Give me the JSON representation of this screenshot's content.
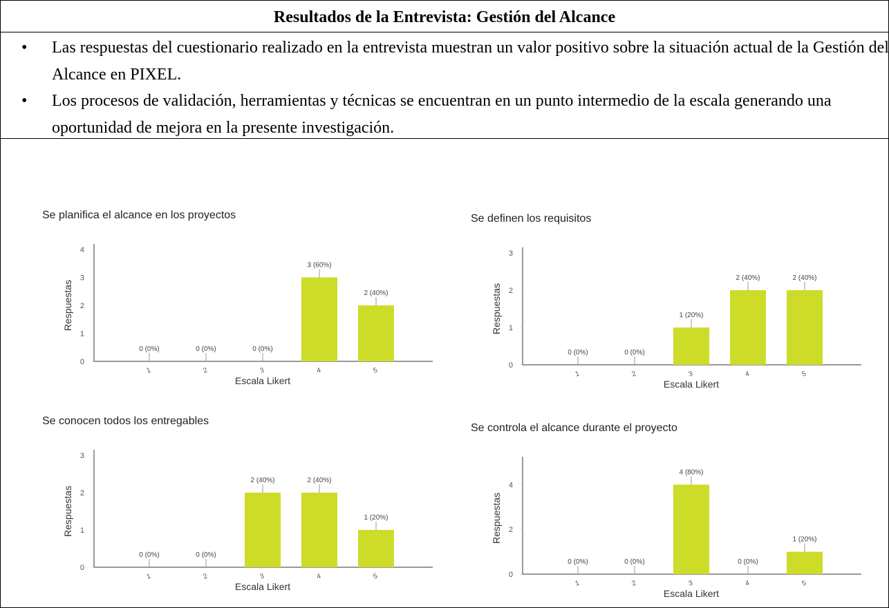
{
  "header": {
    "title": "Resultados de la Entrevista: Gestión del Alcance"
  },
  "bullets": [
    "Las respuestas del cuestionario realizado en la entrevista muestran un valor positivo sobre la situación actual de la Gestión del Alcance en PIXEL.",
    "Los procesos de validación, herramientas y técnicas se encuentran en un punto intermedio de la escala generando una oportunidad de mejora en la presente investigación."
  ],
  "chart_data": [
    {
      "type": "bar",
      "title": "Se planifica el alcance en los proyectos",
      "xlabel": "Escala Likert",
      "ylabel": "Respuestas",
      "categories": [
        "1",
        "2",
        "3",
        "4",
        "5"
      ],
      "values": [
        0,
        0,
        0,
        3,
        2
      ],
      "value_labels": [
        "0 (0%)",
        "0 (0%)",
        "0 (0%)",
        "3 (60%)",
        "2 (40%)"
      ],
      "color": "#cddc29",
      "ylim": [
        0,
        4
      ],
      "yticks": [
        0,
        1,
        2,
        3,
        4
      ]
    },
    {
      "type": "bar",
      "title": "Se definen los requisitos",
      "xlabel": "Escala Likert",
      "ylabel": "Respuestas",
      "categories": [
        "1",
        "2",
        "3",
        "4",
        "5"
      ],
      "values": [
        0,
        0,
        1,
        2,
        2
      ],
      "value_labels": [
        "0 (0%)",
        "0 (0%)",
        "1 (20%)",
        "2 (40%)",
        "2 (40%)"
      ],
      "color": "#cddc29",
      "ylim": [
        0,
        3
      ],
      "yticks": [
        0,
        1,
        2,
        3
      ]
    },
    {
      "type": "bar",
      "title": "Se conocen todos los entregables",
      "xlabel": "Escala Likert",
      "ylabel": "Respuestas",
      "categories": [
        "1",
        "2",
        "3",
        "4",
        "5"
      ],
      "values": [
        0,
        0,
        2,
        2,
        1
      ],
      "value_labels": [
        "0 (0%)",
        "0 (0%)",
        "2 (40%)",
        "2 (40%)",
        "1 (20%)"
      ],
      "color": "#cddc29",
      "ylim": [
        0,
        3
      ],
      "yticks": [
        0,
        1,
        2,
        3
      ]
    },
    {
      "type": "bar",
      "title": "Se controla el alcance durante el proyecto",
      "xlabel": "Escala Likert",
      "ylabel": "Respuestas",
      "categories": [
        "1",
        "2",
        "3",
        "4",
        "5"
      ],
      "values": [
        0,
        0,
        4,
        0,
        1
      ],
      "value_labels": [
        "0 (0%)",
        "0 (0%)",
        "4 (80%)",
        "0 (0%)",
        "1 (20%)"
      ],
      "color": "#cddc29",
      "ylim": [
        0,
        5
      ],
      "yticks": [
        0,
        2,
        4
      ]
    }
  ]
}
